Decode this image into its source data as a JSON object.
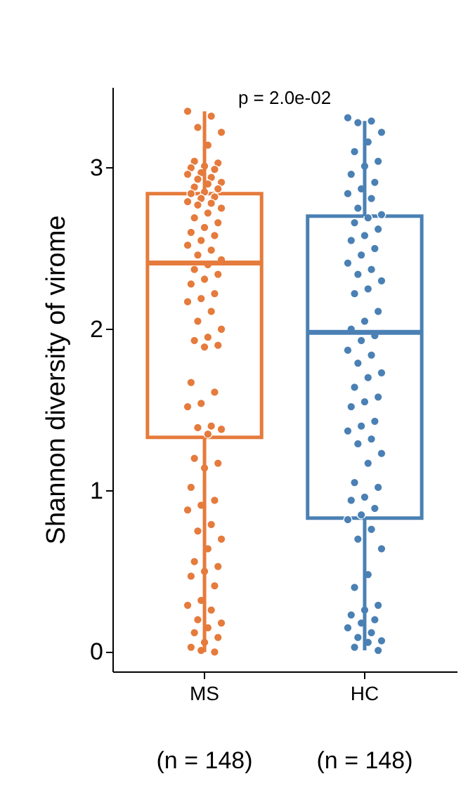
{
  "chart_data": {
    "type": "box",
    "categories": [
      "MS",
      "HC"
    ],
    "colors": [
      "#e57b3c",
      "#4a80b4"
    ],
    "boxes": [
      {
        "low": 0.0,
        "q1": 1.33,
        "median": 2.41,
        "q3": 2.84,
        "high": 3.35
      },
      {
        "low": 0.01,
        "q1": 0.83,
        "median": 1.98,
        "q3": 2.7,
        "high": 3.29
      }
    ],
    "series": [
      {
        "type": "scatter",
        "color": "#e57b3c",
        "x": [
          "MS",
          "MS",
          "MS",
          "MS",
          "MS",
          "MS",
          "MS",
          "MS",
          "MS",
          "MS",
          "MS",
          "MS",
          "MS",
          "MS",
          "MS",
          "MS",
          "MS",
          "MS",
          "MS",
          "MS",
          "MS",
          "MS",
          "MS",
          "MS",
          "MS",
          "MS",
          "MS",
          "MS",
          "MS",
          "MS",
          "MS",
          "MS",
          "MS",
          "MS",
          "MS",
          "MS",
          "MS",
          "MS",
          "MS",
          "MS",
          "MS",
          "MS",
          "MS",
          "MS",
          "MS",
          "MS",
          "MS",
          "MS",
          "MS",
          "MS",
          "MS",
          "MS",
          "MS",
          "MS",
          "MS",
          "MS",
          "MS",
          "MS",
          "MS",
          "MS",
          "MS",
          "MS",
          "MS",
          "MS",
          "MS",
          "MS",
          "MS",
          "MS",
          "MS",
          "MS",
          "MS",
          "MS",
          "MS",
          "MS",
          "MS",
          "MS",
          "MS",
          "MS",
          "MS",
          "MS",
          "MS",
          "MS",
          "MS",
          "MS",
          "MS",
          "MS",
          "MS",
          "MS"
        ],
        "values": [
          3.35,
          3.32,
          3.25,
          3.22,
          3.14,
          3.04,
          3.03,
          3.01,
          3.0,
          2.99,
          2.97,
          2.96,
          2.94,
          2.93,
          2.91,
          2.9,
          2.88,
          2.87,
          2.85,
          2.84,
          2.82,
          2.81,
          2.79,
          2.78,
          2.77,
          2.75,
          2.72,
          2.69,
          2.66,
          2.63,
          2.6,
          2.58,
          2.55,
          2.52,
          2.49,
          2.46,
          2.43,
          2.4,
          2.37,
          2.34,
          2.31,
          2.28,
          2.22,
          2.19,
          2.17,
          2.11,
          2.05,
          2.0,
          1.95,
          1.93,
          1.9,
          1.89,
          1.67,
          1.61,
          1.54,
          1.52,
          1.4,
          1.39,
          1.38,
          1.35,
          1.2,
          1.17,
          1.14,
          1.02,
          0.94,
          0.91,
          0.88,
          0.79,
          0.75,
          0.7,
          0.64,
          0.56,
          0.53,
          0.5,
          0.47,
          0.41,
          0.32,
          0.29,
          0.26,
          0.2,
          0.18,
          0.15,
          0.12,
          0.09,
          0.06,
          0.03,
          0.0,
          0.01
        ]
      },
      {
        "type": "scatter",
        "color": "#4a80b4",
        "x": [
          "HC",
          "HC",
          "HC",
          "HC",
          "HC",
          "HC",
          "HC",
          "HC",
          "HC",
          "HC",
          "HC",
          "HC",
          "HC",
          "HC",
          "HC",
          "HC",
          "HC",
          "HC",
          "HC",
          "HC",
          "HC",
          "HC",
          "HC",
          "HC",
          "HC",
          "HC",
          "HC",
          "HC",
          "HC",
          "HC",
          "HC",
          "HC",
          "HC",
          "HC",
          "HC",
          "HC",
          "HC",
          "HC",
          "HC",
          "HC",
          "HC",
          "HC",
          "HC",
          "HC",
          "HC",
          "HC",
          "HC",
          "HC",
          "HC",
          "HC",
          "HC",
          "HC",
          "HC",
          "HC",
          "HC",
          "HC",
          "HC",
          "HC",
          "HC",
          "HC",
          "HC",
          "HC",
          "HC",
          "HC",
          "HC",
          "HC",
          "HC",
          "HC",
          "HC",
          "HC",
          "HC",
          "HC",
          "HC"
        ],
        "values": [
          3.31,
          3.29,
          3.28,
          3.22,
          3.16,
          3.1,
          3.04,
          3.01,
          2.96,
          2.91,
          2.87,
          2.84,
          2.81,
          2.75,
          2.71,
          2.69,
          2.66,
          2.62,
          2.58,
          2.55,
          2.5,
          2.46,
          2.41,
          2.37,
          2.34,
          2.3,
          2.25,
          2.22,
          2.11,
          2.05,
          2.0,
          1.96,
          1.93,
          1.87,
          1.84,
          1.79,
          1.73,
          1.7,
          1.64,
          1.58,
          1.55,
          1.52,
          1.43,
          1.4,
          1.37,
          1.32,
          1.29,
          1.23,
          1.17,
          1.05,
          1.02,
          0.96,
          0.94,
          0.89,
          0.85,
          0.82,
          0.76,
          0.7,
          0.64,
          0.48,
          0.4,
          0.29,
          0.26,
          0.23,
          0.2,
          0.18,
          0.15,
          0.12,
          0.09,
          0.07,
          0.06,
          0.03,
          0.01
        ]
      }
    ],
    "ylabel": "Shannon diversity of virome",
    "ylim": [
      -0.12,
      3.5
    ],
    "yticks": [
      0,
      1,
      2,
      3
    ],
    "marker": "circle",
    "annotations": [
      "p = 2.0e-02",
      "(n = 148)",
      "(n = 148)"
    ]
  }
}
